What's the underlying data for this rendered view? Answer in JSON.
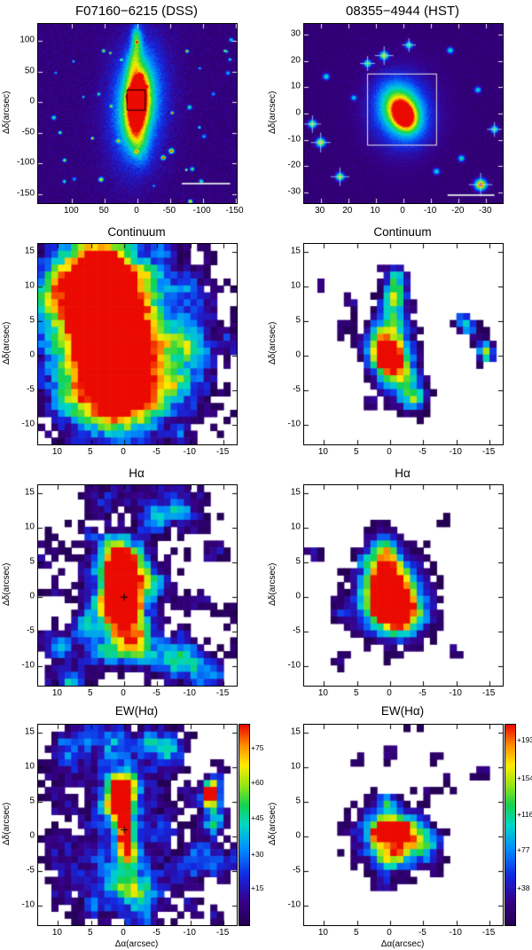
{
  "chart_data": [
    {
      "type": "image",
      "title": "F07160−6215 (DSS)",
      "ylabel": "Δδ(arcsec)",
      "xlim": [
        152,
        -152
      ],
      "ylim": [
        -165,
        128
      ],
      "xticks": [
        100,
        50,
        0,
        -50,
        -100,
        -150
      ],
      "yticks": [
        100,
        50,
        0,
        -50,
        -100,
        -150
      ],
      "render": {
        "kind": "image",
        "seed": 11,
        "bg": [
          0.05,
          0.1
        ],
        "gaussians": [
          [
            0,
            -5,
            30,
            70,
            0.32,
            4
          ],
          [
            0,
            0,
            17,
            45,
            0.5,
            4
          ],
          [
            0,
            0,
            9,
            30,
            0.85,
            3
          ],
          [
            1,
            2,
            5,
            16,
            0.75,
            0
          ],
          [
            4,
            75,
            7,
            22,
            0.3,
            10
          ],
          [
            2,
            108,
            5,
            14,
            0.33,
            0
          ],
          [
            -2,
            -65,
            10,
            25,
            0.2,
            -8
          ]
        ],
        "randomStars": {
          "count": 42,
          "amp": [
            0.35,
            0.95
          ],
          "sigma": [
            1.3,
            2.6
          ]
        },
        "rect": {
          "x0": 16,
          "x1": -12,
          "y0": -13,
          "y1": 20,
          "color": "#000000"
        },
        "scalebar": {
          "x0": -68,
          "x1": -142,
          "y": -133,
          "color": "#cfd2dd"
        },
        "tickColor": "#e6e6e6"
      }
    },
    {
      "type": "image",
      "title": "08355−4944 (HST)",
      "ylabel": "Δδ(arcsec)",
      "xlim": [
        36,
        -36
      ],
      "ylim": [
        -34,
        34
      ],
      "xticks": [
        30,
        20,
        10,
        0,
        -10,
        -20,
        -30
      ],
      "yticks": [
        30,
        20,
        10,
        0,
        -10,
        -20,
        -30
      ],
      "render": {
        "kind": "image",
        "seed": 22,
        "bg": [
          0.05,
          0.07
        ],
        "gaussians": [
          [
            1,
            1,
            8,
            10,
            0.3,
            0
          ],
          [
            0.5,
            1,
            4.5,
            6.5,
            0.55,
            -25
          ],
          [
            0,
            -0.5,
            2.2,
            3.2,
            0.9,
            -25
          ],
          [
            0,
            -0.5,
            1,
            1.3,
            0.6,
            0
          ],
          [
            1,
            1.5,
            0.7,
            0.7,
            0.35,
            0
          ]
        ],
        "stars": [
          [
            33,
            -4,
            0.7,
            1
          ],
          [
            30,
            -11,
            0.8,
            1.1
          ],
          [
            23,
            -24,
            0.75,
            1
          ],
          [
            -28,
            -27,
            0.95,
            1.4
          ],
          [
            -21,
            -17,
            0.5,
            0.8
          ],
          [
            7,
            22,
            0.75,
            1
          ],
          [
            13,
            19,
            0.6,
            0.9
          ],
          [
            -2,
            26,
            0.55,
            0.9
          ],
          [
            -27,
            9,
            0.45,
            0.8
          ],
          [
            18,
            6,
            0.4,
            0.7
          ],
          [
            -33,
            -6,
            0.6,
            0.9
          ],
          [
            28,
            14,
            0.5,
            0.8
          ],
          [
            -12,
            -22,
            0.45,
            0.8
          ],
          [
            -17,
            24,
            0.5,
            0.8
          ]
        ],
        "box": {
          "x0": 13,
          "x1": -12,
          "y0": -12,
          "y1": 15,
          "color": "#e8e8e8"
        },
        "scalebar": {
          "x0": -16,
          "x1": -33,
          "y": -31,
          "color": "#cfd2dd"
        },
        "tickColor": "#e6e6e6"
      }
    },
    {
      "type": "heatmap",
      "title": "Continuum",
      "ylabel": "Δδ(arcsec)",
      "xlim": [
        13,
        -17
      ],
      "ylim": [
        -12.8,
        16.2
      ],
      "xticks": [
        10,
        5,
        0,
        -5,
        -10,
        -15
      ],
      "yticks": [
        -10,
        -5,
        0,
        5,
        10,
        15
      ],
      "render": {
        "kind": "pixels",
        "seed": 33,
        "noise": 0.1,
        "threshold": 0.12,
        "gaussians": [
          [
            2,
            0,
            2,
            2.5,
            1.05
          ],
          [
            2,
            1,
            4,
            5,
            0.75
          ],
          [
            3,
            8,
            4,
            4,
            0.6
          ],
          [
            4,
            13,
            3,
            3,
            0.5
          ],
          [
            1,
            -6,
            4,
            3.5,
            0.6
          ],
          [
            3,
            3,
            7,
            9,
            0.45
          ],
          [
            6,
            10,
            5,
            5,
            0.35
          ],
          [
            -2,
            -2,
            5,
            5,
            0.35
          ],
          [
            1,
            2,
            9,
            11,
            0.28
          ],
          [
            -11,
            2,
            2,
            8,
            0.22
          ]
        ],
        "patches": {
          "count": 26,
          "amp": [
            0.14,
            0.26
          ],
          "sigma": [
            0.8,
            1.6
          ]
        },
        "tickColor": "#000000"
      }
    },
    {
      "type": "heatmap",
      "title": "Continuum",
      "ylabel": "Δδ(arcsec)",
      "xlim": [
        13,
        -17
      ],
      "ylim": [
        -12.8,
        16.2
      ],
      "xticks": [
        10,
        5,
        0,
        -5,
        -10,
        -15
      ],
      "yticks": [
        -10,
        -5,
        0,
        5,
        10,
        15
      ],
      "render": {
        "kind": "pixels",
        "seed": 44,
        "noise": 0.08,
        "threshold": 0.13,
        "gaussians": [
          [
            0,
            -0.5,
            1.2,
            1.2,
            1.0
          ],
          [
            0,
            0,
            2.5,
            3,
            0.7
          ],
          [
            -0.5,
            6,
            1.8,
            3,
            0.5
          ],
          [
            -1,
            10,
            1.2,
            1.5,
            0.45
          ],
          [
            -2,
            -4,
            2,
            2.5,
            0.45
          ],
          [
            -4,
            -6,
            1.5,
            1.5,
            0.3
          ],
          [
            -11,
            5,
            1,
            1,
            0.5
          ],
          [
            -12,
            4,
            0.8,
            0.8,
            0.4
          ],
          [
            -14,
            1,
            0.9,
            1.4,
            0.5
          ],
          [
            -15,
            0,
            0.7,
            0.7,
            0.35
          ],
          [
            -1,
            12,
            0.8,
            0.8,
            0.35
          ],
          [
            2,
            2,
            1.5,
            2,
            0.35
          ]
        ],
        "patches": {
          "count": 8,
          "amp": [
            0.14,
            0.24
          ],
          "sigma": [
            0.7,
            1.2
          ]
        },
        "tickColor": "#000000"
      }
    },
    {
      "type": "heatmap",
      "title": "Hα",
      "ylabel": "Δδ(arcsec)",
      "xlim": [
        13,
        -17
      ],
      "ylim": [
        -12.8,
        16.2
      ],
      "xticks": [
        10,
        5,
        0,
        -5,
        -10,
        -15
      ],
      "yticks": [
        -10,
        -5,
        0,
        5,
        10,
        15
      ],
      "render": {
        "kind": "pixels",
        "seed": 55,
        "noise": 0.1,
        "threshold": 0.12,
        "gaussians": [
          [
            0.5,
            0,
            1.5,
            2,
            1.0
          ],
          [
            0,
            2,
            2,
            3,
            0.8
          ],
          [
            1,
            -3,
            2,
            2,
            0.6
          ],
          [
            0,
            5,
            2,
            2.5,
            0.55
          ],
          [
            2,
            7,
            1.5,
            1.5,
            0.4
          ],
          [
            -1,
            -6,
            2,
            2,
            0.45
          ],
          [
            3,
            -8,
            2,
            1.5,
            0.35
          ],
          [
            0,
            0,
            5,
            7,
            0.3
          ]
        ],
        "patches": {
          "count": 46,
          "amp": [
            0.14,
            0.3
          ],
          "sigma": [
            0.8,
            2
          ]
        },
        "cross": [
          0,
          0
        ],
        "tickColor": "#000000"
      }
    },
    {
      "type": "heatmap",
      "title": "Hα",
      "ylabel": "Δδ(arcsec)",
      "xlim": [
        13,
        -17
      ],
      "ylim": [
        -12.8,
        16.2
      ],
      "xticks": [
        10,
        5,
        0,
        -5,
        -10,
        -15
      ],
      "yticks": [
        -10,
        -5,
        0,
        5,
        10,
        15
      ],
      "render": {
        "kind": "pixels",
        "seed": 66,
        "noise": 0.08,
        "threshold": 0.13,
        "gaussians": [
          [
            0,
            -1,
            1.5,
            1.5,
            1.0
          ],
          [
            0,
            0,
            3,
            3,
            0.75
          ],
          [
            0.5,
            3,
            2,
            3,
            0.5
          ],
          [
            1,
            7,
            1.5,
            2,
            0.45
          ],
          [
            -2,
            -3,
            2.5,
            2,
            0.5
          ],
          [
            0,
            0,
            4.5,
            5,
            0.35
          ]
        ],
        "patches": {
          "count": 7,
          "amp": [
            0.14,
            0.24
          ],
          "sigma": [
            0.7,
            1.3
          ]
        },
        "tickColor": "#000000"
      }
    },
    {
      "type": "heatmap",
      "title": "EW(Hα)",
      "ylabel": "Δδ(arcsec)",
      "xlabel": "Δα(arcsec)",
      "xlim": [
        13,
        -17
      ],
      "ylim": [
        -12.8,
        16.2
      ],
      "xticks": [
        10,
        5,
        0,
        -5,
        -10,
        -15
      ],
      "yticks": [
        -10,
        -5,
        0,
        5,
        10,
        15
      ],
      "colorbar": {
        "labels": [
          "+75",
          "+60",
          "+45",
          "+30",
          "+15"
        ],
        "fracs": [
          0.88,
          0.71,
          0.53,
          0.35,
          0.18
        ]
      },
      "render": {
        "kind": "pixels",
        "seed": 77,
        "noise": 0.1,
        "threshold": 0.12,
        "gaussians": [
          [
            0,
            0,
            6,
            8,
            0.3
          ],
          [
            1,
            -7,
            5,
            3,
            0.25
          ],
          [
            0,
            10,
            4,
            4,
            0.25
          ],
          [
            0,
            1,
            1,
            2,
            0.55
          ],
          [
            0.5,
            4,
            1,
            2,
            0.5
          ],
          [
            0,
            6.5,
            1.2,
            1.5,
            0.6
          ],
          [
            -0.5,
            -2,
            1,
            1.5,
            0.65
          ],
          [
            -13,
            6.5,
            0.8,
            1.2,
            0.95
          ],
          [
            -13,
            5,
            1,
            1,
            0.55
          ],
          [
            -7,
            12,
            1.5,
            1.5,
            0.3
          ],
          [
            2,
            14,
            2,
            1.5,
            0.28
          ]
        ],
        "patches": {
          "count": 40,
          "amp": [
            0.14,
            0.28
          ],
          "sigma": [
            0.8,
            1.8
          ]
        },
        "cross": [
          0,
          1
        ],
        "tickColor": "#000000"
      }
    },
    {
      "type": "heatmap",
      "title": "EW(Hα)",
      "ylabel": "Δδ(arcsec)",
      "xlabel": "Δα(arcsec)",
      "xlim": [
        13,
        -17
      ],
      "ylim": [
        -12.8,
        16.2
      ],
      "xticks": [
        10,
        5,
        0,
        -5,
        -10,
        -15
      ],
      "yticks": [
        -10,
        -5,
        0,
        5,
        10,
        15
      ],
      "colorbar": {
        "labels": [
          "+193",
          "+154",
          "+116",
          "+77",
          "+38"
        ],
        "fracs": [
          0.92,
          0.73,
          0.55,
          0.37,
          0.18
        ]
      },
      "render": {
        "kind": "pixels",
        "seed": 88,
        "noise": 0.09,
        "threshold": 0.13,
        "gaussians": [
          [
            0,
            0,
            4.5,
            4,
            0.32
          ],
          [
            1,
            1,
            2.5,
            2,
            0.55
          ],
          [
            -2,
            0,
            2,
            2,
            0.5
          ],
          [
            0,
            -3,
            2,
            1.5,
            0.45
          ],
          [
            1.5,
            0.5,
            0.7,
            0.7,
            0.95
          ],
          [
            -1,
            1.5,
            0.8,
            0.6,
            0.85
          ],
          [
            0.5,
            5,
            0.8,
            0.8,
            0.5
          ],
          [
            0,
            12,
            0.7,
            0.7,
            0.4
          ],
          [
            -5,
            -1,
            1.5,
            2,
            0.35
          ]
        ],
        "patches": {
          "count": 10,
          "amp": [
            0.14,
            0.24
          ],
          "sigma": [
            0.7,
            1.3
          ]
        },
        "tickColor": "#000000"
      }
    }
  ],
  "colors": {
    "colormap_low": "#23004f",
    "colormap_mid": "#14d250",
    "colormap_high": "#eb0a00",
    "background": "#ffffff"
  }
}
